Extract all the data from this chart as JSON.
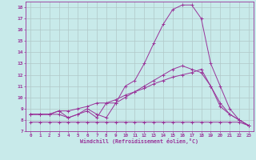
{
  "xlabel": "Windchill (Refroidissement éolien,°C)",
  "xlim": [
    -0.5,
    23.5
  ],
  "ylim": [
    7,
    18.5
  ],
  "yticks": [
    7,
    8,
    9,
    10,
    11,
    12,
    13,
    14,
    15,
    16,
    17,
    18
  ],
  "xticks": [
    0,
    1,
    2,
    3,
    4,
    5,
    6,
    7,
    8,
    9,
    10,
    11,
    12,
    13,
    14,
    15,
    16,
    17,
    18,
    19,
    20,
    21,
    22,
    23
  ],
  "background_color": "#c8eaea",
  "line_color": "#993399",
  "grid_color": "#b0c8c8",
  "line1_x": [
    0,
    1,
    2,
    3,
    4,
    5,
    6,
    7,
    8,
    9,
    10,
    11,
    12,
    13,
    14,
    15,
    16,
    17,
    18,
    19,
    20,
    21,
    22,
    23
  ],
  "line1_y": [
    7.8,
    7.8,
    7.8,
    7.8,
    7.8,
    7.8,
    7.8,
    7.8,
    7.8,
    7.8,
    7.8,
    7.8,
    7.8,
    7.8,
    7.8,
    7.8,
    7.8,
    7.8,
    7.8,
    7.8,
    7.8,
    7.8,
    7.8,
    7.5
  ],
  "line2_x": [
    0,
    1,
    2,
    3,
    4,
    5,
    6,
    7,
    8,
    9,
    10,
    11,
    12,
    13,
    14,
    15,
    16,
    17,
    18,
    19,
    20,
    21,
    22,
    23
  ],
  "line2_y": [
    8.5,
    8.5,
    8.5,
    8.8,
    8.8,
    9.0,
    9.2,
    9.5,
    9.5,
    9.8,
    10.2,
    10.5,
    10.8,
    11.2,
    11.5,
    11.8,
    12.0,
    12.2,
    12.5,
    11.0,
    9.5,
    8.5,
    8.0,
    7.5
  ],
  "line3_x": [
    0,
    1,
    2,
    3,
    4,
    5,
    6,
    7,
    8,
    9,
    10,
    11,
    12,
    13,
    14,
    15,
    16,
    17,
    18,
    19,
    20,
    21,
    22,
    23
  ],
  "line3_y": [
    8.5,
    8.5,
    8.5,
    8.5,
    8.2,
    8.5,
    8.8,
    8.2,
    9.5,
    9.5,
    11.0,
    11.5,
    13.0,
    14.8,
    16.5,
    17.8,
    18.2,
    18.2,
    17.0,
    13.0,
    11.0,
    9.0,
    8.0,
    7.5
  ],
  "line4_x": [
    0,
    1,
    2,
    3,
    4,
    5,
    6,
    7,
    8,
    9,
    10,
    11,
    12,
    13,
    14,
    15,
    16,
    17,
    18,
    19,
    20,
    21,
    22,
    23
  ],
  "line4_y": [
    8.5,
    8.5,
    8.5,
    8.8,
    8.2,
    8.5,
    9.0,
    8.5,
    8.2,
    9.5,
    10.0,
    10.5,
    11.0,
    11.5,
    12.0,
    12.5,
    12.8,
    12.5,
    12.2,
    11.0,
    9.2,
    8.5,
    8.0,
    7.5
  ]
}
